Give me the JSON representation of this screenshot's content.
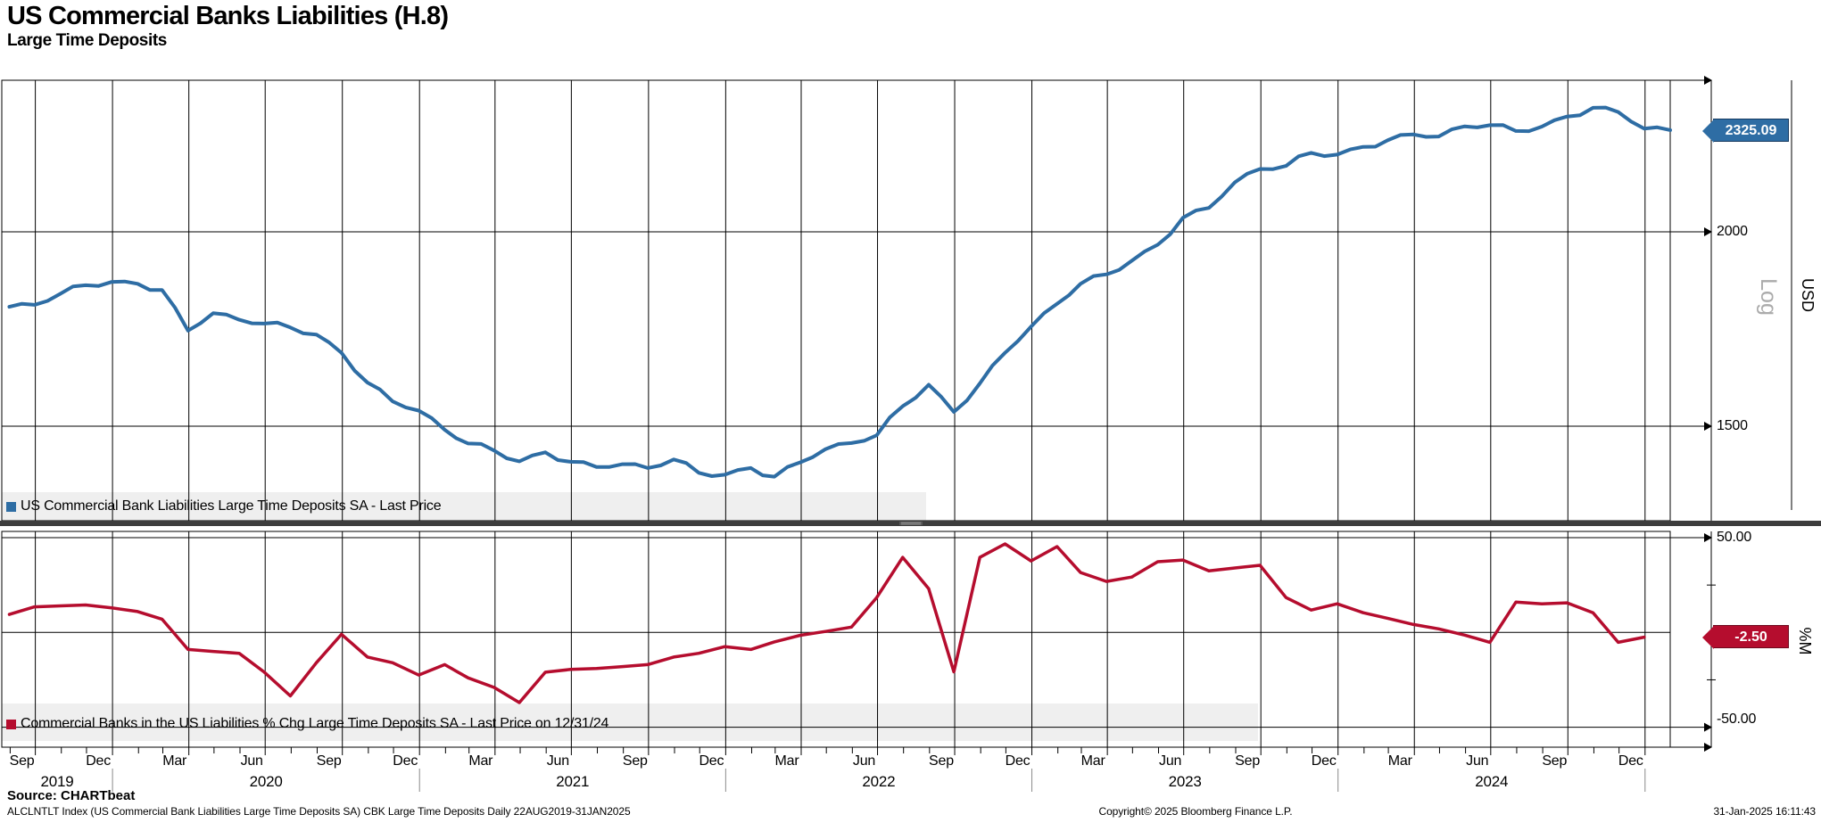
{
  "header": {
    "title": "US Commercial Banks Liabilities (H.8)",
    "subtitle": "Large Time Deposits"
  },
  "top_panel": {
    "legend_label": "US Commercial Bank Liabilities Large Time Deposits SA - Last Price",
    "last_price_tag": "2325.09",
    "scale_label": "Log",
    "unit_label": "USD",
    "tick_labels": [
      "2000",
      "1500"
    ]
  },
  "bottom_panel": {
    "legend_label": "Commercial Banks in the US Liabilities % Chg Large Time Deposits SA - Last Price on 12/31/24",
    "last_price_tag": "-2.50",
    "unit_label": "%M",
    "tick_labels": [
      "50.00",
      "-50.00"
    ]
  },
  "footer": {
    "source": "Source: CHARTbeat",
    "left": "ALCLNTLT Index (US Commercial Bank Liabilities Large Time Deposits SA) CBK Large Time Deposits  Daily 22AUG2019-31JAN2025",
    "center": "Copyright© 2025 Bloomberg Finance L.P.",
    "right": "31-Jan-2025 16:11:43"
  },
  "colors": {
    "blue": "#2e6da4",
    "red": "#b50d2e",
    "legend_bg": "#efefef",
    "grid": "#000000",
    "divider": "#3d3d3d",
    "log_label": "#ababab"
  },
  "x_axis": {
    "start": "2019-08-22",
    "end": "2025-01-31",
    "quarter_labels": [
      {
        "label": "Sep",
        "date": "2019-09-15"
      },
      {
        "label": "Dec",
        "date": "2019-12-15"
      },
      {
        "label": "Mar",
        "date": "2020-03-15"
      },
      {
        "label": "Jun",
        "date": "2020-06-15"
      },
      {
        "label": "Sep",
        "date": "2020-09-15"
      },
      {
        "label": "Dec",
        "date": "2020-12-15"
      },
      {
        "label": "Mar",
        "date": "2021-03-15"
      },
      {
        "label": "Jun",
        "date": "2021-06-15"
      },
      {
        "label": "Sep",
        "date": "2021-09-15"
      },
      {
        "label": "Dec",
        "date": "2021-12-15"
      },
      {
        "label": "Mar",
        "date": "2022-03-15"
      },
      {
        "label": "Jun",
        "date": "2022-06-15"
      },
      {
        "label": "Sep",
        "date": "2022-09-15"
      },
      {
        "label": "Dec",
        "date": "2022-12-15"
      },
      {
        "label": "Mar",
        "date": "2023-03-15"
      },
      {
        "label": "Jun",
        "date": "2023-06-15"
      },
      {
        "label": "Sep",
        "date": "2023-09-15"
      },
      {
        "label": "Dec",
        "date": "2023-12-15"
      },
      {
        "label": "Mar",
        "date": "2024-03-15"
      },
      {
        "label": "Jun",
        "date": "2024-06-15"
      },
      {
        "label": "Sep",
        "date": "2024-09-15"
      },
      {
        "label": "Dec",
        "date": "2024-12-15"
      }
    ],
    "years": [
      {
        "label": "2019",
        "start": "2019-08-22",
        "end": "2020-01-01"
      },
      {
        "label": "2020",
        "start": "2020-01-01",
        "end": "2021-01-01"
      },
      {
        "label": "2021",
        "start": "2021-01-01",
        "end": "2022-01-01"
      },
      {
        "label": "2022",
        "start": "2022-01-01",
        "end": "2023-01-01"
      },
      {
        "label": "2023",
        "start": "2023-01-01",
        "end": "2024-01-01"
      },
      {
        "label": "2024",
        "start": "2024-01-01",
        "end": "2025-01-01"
      }
    ]
  },
  "chart_data": [
    {
      "type": "line",
      "name": "US Commercial Bank Liabilities Large Time Deposits SA - Last Price",
      "panel": "top",
      "color": "#2e6da4",
      "yaxis": {
        "scale": "log",
        "unit": "USD",
        "ticks": [
          2000,
          1500
        ],
        "range_approx": [
          1300,
          2500
        ]
      },
      "last_price": 2325.09,
      "dates": [
        "2019-08-31",
        "2019-09-30",
        "2019-10-31",
        "2019-11-30",
        "2019-12-31",
        "2020-01-31",
        "2020-02-29",
        "2020-03-31",
        "2020-04-30",
        "2020-05-31",
        "2020-06-30",
        "2020-07-31",
        "2020-08-31",
        "2020-09-30",
        "2020-10-31",
        "2020-11-30",
        "2020-12-31",
        "2021-01-31",
        "2021-02-28",
        "2021-03-31",
        "2021-04-30",
        "2021-05-31",
        "2021-06-30",
        "2021-07-31",
        "2021-08-31",
        "2021-09-30",
        "2021-10-31",
        "2021-11-30",
        "2021-12-31",
        "2022-01-31",
        "2022-02-28",
        "2022-03-31",
        "2022-04-30",
        "2022-05-31",
        "2022-06-30",
        "2022-07-31",
        "2022-08-31",
        "2022-09-30",
        "2022-10-31",
        "2022-11-30",
        "2022-12-31",
        "2023-01-31",
        "2023-02-28",
        "2023-03-31",
        "2023-04-30",
        "2023-05-31",
        "2023-06-30",
        "2023-07-31",
        "2023-08-31",
        "2023-09-30",
        "2023-10-31",
        "2023-11-30",
        "2023-12-31",
        "2024-01-31",
        "2024-02-29",
        "2024-03-31",
        "2024-04-30",
        "2024-05-31",
        "2024-06-30",
        "2024-07-31",
        "2024-08-31",
        "2024-09-30",
        "2024-10-31",
        "2024-11-30",
        "2024-12-31",
        "2025-01-31"
      ],
      "values": [
        1790,
        1795,
        1825,
        1848,
        1857,
        1852,
        1835,
        1728,
        1773,
        1756,
        1746,
        1736,
        1718,
        1672,
        1600,
        1556,
        1535,
        1492,
        1462,
        1447,
        1424,
        1443,
        1423,
        1412,
        1418,
        1410,
        1428,
        1400,
        1396,
        1410,
        1392,
        1422,
        1450,
        1463,
        1480,
        1545,
        1595,
        1532,
        1598,
        1672,
        1738,
        1798,
        1852,
        1878,
        1916,
        1962,
        2042,
        2072,
        2152,
        2195,
        2205,
        2248,
        2242,
        2268,
        2290,
        2310,
        2303,
        2338,
        2342,
        2322,
        2337,
        2372,
        2403,
        2388,
        2330,
        2325.09
      ]
    },
    {
      "type": "line",
      "name": "Commercial Banks in the US Liabilities % Chg Large Time Deposits SA - Last Price on 12/31/24",
      "panel": "bottom",
      "color": "#b50d2e",
      "yaxis": {
        "unit": "%M",
        "ticks": [
          50,
          0,
          -50
        ],
        "minor_ticks": [
          25,
          -25
        ],
        "range_approx": [
          -61,
          55
        ]
      },
      "last_price": -2.5,
      "last_price_date": "12/31/24",
      "dates": [
        "2019-08-31",
        "2019-09-30",
        "2019-10-31",
        "2019-11-30",
        "2019-12-31",
        "2020-01-31",
        "2020-02-29",
        "2020-03-31",
        "2020-04-30",
        "2020-05-31",
        "2020-06-30",
        "2020-07-31",
        "2020-08-31",
        "2020-09-30",
        "2020-10-31",
        "2020-11-30",
        "2020-12-31",
        "2021-01-31",
        "2021-02-28",
        "2021-03-31",
        "2021-04-30",
        "2021-05-31",
        "2021-06-30",
        "2021-07-31",
        "2021-08-31",
        "2021-09-30",
        "2021-10-31",
        "2021-11-30",
        "2021-12-31",
        "2022-01-31",
        "2022-02-28",
        "2022-03-31",
        "2022-04-30",
        "2022-05-31",
        "2022-06-30",
        "2022-07-31",
        "2022-08-31",
        "2022-09-30",
        "2022-10-31",
        "2022-11-30",
        "2022-12-31",
        "2023-01-31",
        "2023-02-28",
        "2023-03-31",
        "2023-04-30",
        "2023-05-31",
        "2023-06-30",
        "2023-07-31",
        "2023-08-31",
        "2023-09-30",
        "2023-10-31",
        "2023-11-30",
        "2023-12-31",
        "2024-01-31",
        "2024-02-29",
        "2024-03-31",
        "2024-04-30",
        "2024-05-31",
        "2024-06-30",
        "2024-07-31",
        "2024-08-31",
        "2024-09-30",
        "2024-10-31",
        "2024-11-30",
        "2024-12-31"
      ],
      "values": [
        9.5,
        13.5,
        14,
        14.5,
        13,
        11,
        7,
        -9,
        -10,
        -11,
        -21,
        -33.5,
        -16,
        -1,
        -13,
        -16,
        -22.5,
        -17,
        -24,
        -29,
        -37,
        -21,
        -19.5,
        -19,
        -18,
        -17,
        -13,
        -11,
        -7.5,
        -9,
        -5,
        -1.5,
        0.5,
        2.8,
        18.4,
        39.6,
        23.1,
        -20.8,
        39.6,
        46.7,
        37.7,
        45.3,
        31.6,
        26.9,
        29.2,
        37.3,
        38.2,
        32.5,
        34,
        35.4,
        18.4,
        11.8,
        15.1,
        10.4,
        7.5,
        4.2,
        1.9,
        -1.4,
        -5.2,
        16,
        15.1,
        15.6,
        10.4,
        -5.2,
        -2.5
      ]
    }
  ]
}
